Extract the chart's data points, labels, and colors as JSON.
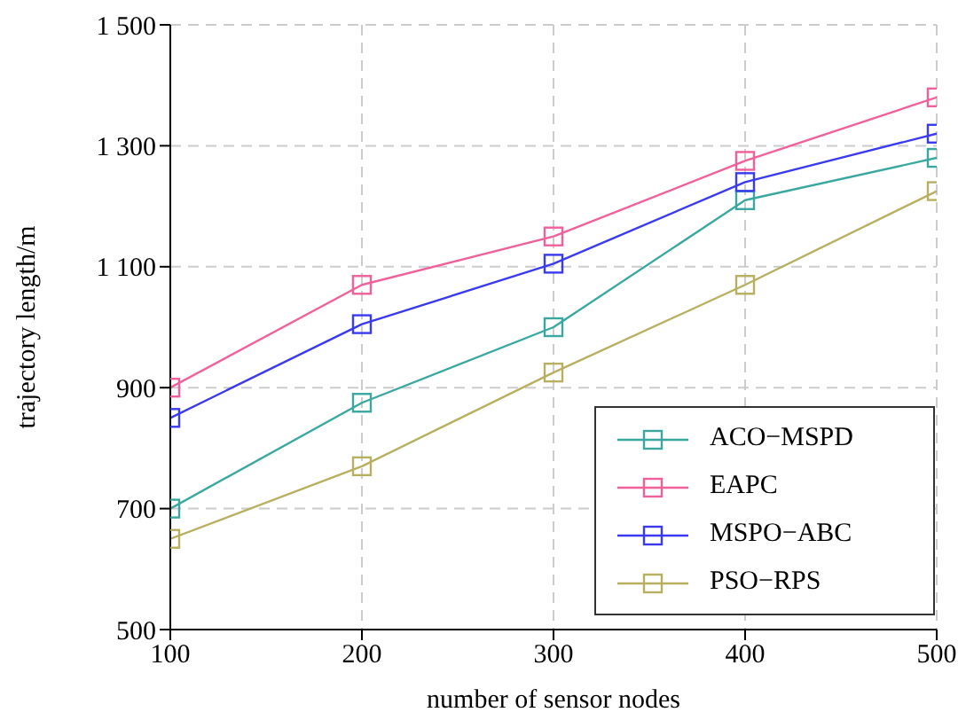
{
  "chart_data": {
    "type": "line",
    "xlabel": "number of sensor nodes",
    "ylabel": "trajectory length/m",
    "x": [
      100,
      200,
      300,
      400,
      500
    ],
    "series": [
      {
        "name": "ACO−MSPD",
        "color": "#3aa8a0",
        "values": [
          700,
          875,
          1000,
          1210,
          1280
        ]
      },
      {
        "name": "EAPC",
        "color": "#f0609a",
        "values": [
          900,
          1070,
          1150,
          1275,
          1380
        ]
      },
      {
        "name": "MSPO−ABC",
        "color": "#3a3af0",
        "values": [
          850,
          1005,
          1105,
          1240,
          1320
        ]
      },
      {
        "name": "PSO−RPS",
        "color": "#b8b060",
        "values": [
          650,
          770,
          925,
          1070,
          1225
        ]
      }
    ],
    "xlim": [
      100,
      500
    ],
    "xticks": [
      100,
      200,
      300,
      400,
      500
    ],
    "ylim": [
      500,
      1500
    ],
    "yticks": [
      500,
      700,
      900,
      {
        "value": 1100,
        "label": "1 100"
      },
      {
        "value": 1300,
        "label": "1 300"
      },
      {
        "value": 1500,
        "label": "1 500"
      }
    ],
    "grid": true,
    "legend": "bottom right",
    "marker": "square",
    "line_style": "solid"
  }
}
